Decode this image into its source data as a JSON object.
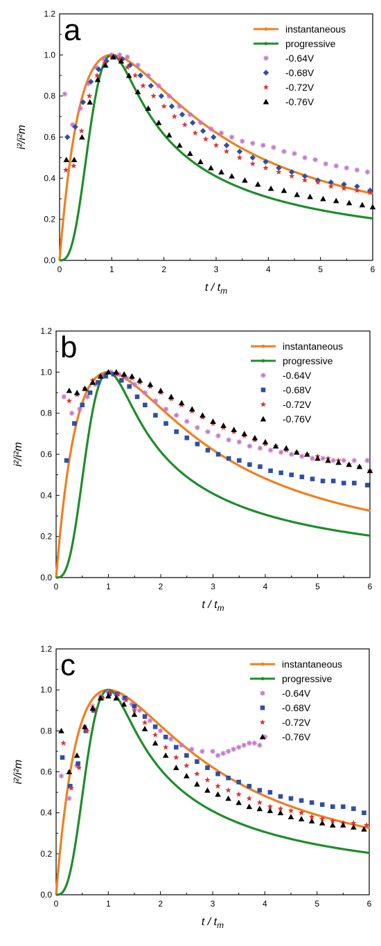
{
  "chart_data": [
    {
      "type": "line",
      "panel_label": "a",
      "xlabel_main": "t / t",
      "xlabel_sub": "m",
      "ylabel": "i²/i²m",
      "xlim": [
        0,
        6
      ],
      "ylim": [
        0,
        1.2
      ],
      "xticks": [
        "0",
        "1",
        "2",
        "3",
        "4",
        "5",
        "6"
      ],
      "yticks": [
        "0.0",
        "0.2",
        "0.4",
        "0.6",
        "0.8",
        "1.0",
        "1.2"
      ],
      "legend_position": "top-right",
      "series": [
        {
          "name": "instantaneous",
          "kind": "line",
          "model": "instantaneous",
          "color": "#f07f1e"
        },
        {
          "name": "progressive",
          "kind": "line",
          "model": "progressive",
          "color": "#1e8c2c"
        },
        {
          "name": "-0.64V",
          "kind": "marker",
          "marker": "asterisk",
          "color": "#c27ac9",
          "x": [
            0.1,
            0.25,
            0.4,
            0.55,
            0.7,
            0.85,
            1.0,
            1.15,
            1.3,
            1.5,
            1.7,
            1.9,
            2.1,
            2.3,
            2.5,
            2.7,
            2.9,
            3.1,
            3.3,
            3.5,
            3.7,
            3.9,
            4.1,
            4.3,
            4.5,
            4.7,
            4.9,
            5.1,
            5.3,
            5.5,
            5.7,
            5.9
          ],
          "y": [
            0.81,
            0.66,
            0.74,
            0.86,
            0.94,
            0.98,
            1.0,
            1.0,
            0.99,
            0.95,
            0.9,
            0.85,
            0.8,
            0.75,
            0.71,
            0.67,
            0.64,
            0.62,
            0.6,
            0.58,
            0.57,
            0.56,
            0.55,
            0.53,
            0.52,
            0.5,
            0.49,
            0.47,
            0.46,
            0.45,
            0.44,
            0.43
          ]
        },
        {
          "name": "-0.68V",
          "kind": "marker",
          "marker": "diamond",
          "color": "#2d4fa3",
          "x": [
            0.15,
            0.3,
            0.45,
            0.6,
            0.75,
            0.9,
            1.05,
            1.2,
            1.35,
            1.55,
            1.75,
            1.95,
            2.15,
            2.35,
            2.55,
            2.75,
            2.95,
            3.2,
            3.45,
            3.7,
            3.95,
            4.2,
            4.45,
            4.7,
            4.95,
            5.2,
            5.45,
            5.7,
            5.95
          ],
          "y": [
            0.6,
            0.65,
            0.77,
            0.87,
            0.93,
            0.97,
            0.99,
            0.98,
            0.95,
            0.9,
            0.85,
            0.8,
            0.75,
            0.71,
            0.67,
            0.63,
            0.6,
            0.56,
            0.53,
            0.5,
            0.48,
            0.45,
            0.43,
            0.41,
            0.39,
            0.38,
            0.37,
            0.36,
            0.34
          ]
        },
        {
          "name": "-0.72V",
          "kind": "marker",
          "marker": "star",
          "color": "#d93535",
          "x": [
            0.12,
            0.27,
            0.42,
            0.57,
            0.72,
            0.87,
            1.0,
            1.15,
            1.3,
            1.45,
            1.6,
            1.8,
            2.0,
            2.2,
            2.4,
            2.6,
            2.8,
            3.0,
            3.2,
            3.45,
            3.7,
            3.95,
            4.2,
            4.45,
            4.7,
            4.95,
            5.2,
            5.45,
            5.7,
            5.95
          ],
          "y": [
            0.44,
            0.46,
            0.63,
            0.8,
            0.9,
            0.96,
            0.99,
            0.98,
            0.94,
            0.9,
            0.85,
            0.8,
            0.75,
            0.7,
            0.66,
            0.62,
            0.59,
            0.56,
            0.53,
            0.5,
            0.47,
            0.45,
            0.43,
            0.41,
            0.39,
            0.38,
            0.36,
            0.35,
            0.34,
            0.33
          ]
        },
        {
          "name": "-0.76V",
          "kind": "marker",
          "marker": "triangle",
          "color": "#000000",
          "x": [
            0.13,
            0.28,
            0.43,
            0.58,
            0.73,
            0.88,
            1.03,
            1.18,
            1.33,
            1.5,
            1.7,
            1.9,
            2.1,
            2.3,
            2.5,
            2.7,
            2.9,
            3.1,
            3.3,
            3.55,
            3.8,
            4.05,
            4.3,
            4.55,
            4.8,
            5.05,
            5.3,
            5.55,
            5.8,
            6.0
          ],
          "y": [
            0.49,
            0.49,
            0.6,
            0.77,
            0.88,
            0.95,
            0.99,
            0.97,
            0.9,
            0.82,
            0.74,
            0.67,
            0.61,
            0.56,
            0.52,
            0.48,
            0.45,
            0.43,
            0.41,
            0.39,
            0.37,
            0.35,
            0.34,
            0.32,
            0.31,
            0.3,
            0.29,
            0.28,
            0.27,
            0.26
          ]
        }
      ]
    },
    {
      "type": "line",
      "panel_label": "b",
      "xlabel_main": "t / t",
      "xlabel_sub": "m",
      "ylabel": "i²/i²m",
      "xlim": [
        0,
        6
      ],
      "ylim": [
        0,
        1.2
      ],
      "xticks": [
        "0",
        "1",
        "2",
        "3",
        "4",
        "5",
        "6"
      ],
      "yticks": [
        "0.0",
        "0.2",
        "0.4",
        "0.6",
        "0.8",
        "1.0",
        "1.2"
      ],
      "legend_position": "top-right",
      "series": [
        {
          "name": "instantaneous",
          "kind": "line",
          "model": "instantaneous",
          "color": "#f07f1e"
        },
        {
          "name": "progressive",
          "kind": "line",
          "model": "progressive",
          "color": "#1e8c2c"
        },
        {
          "name": "-0.64V",
          "kind": "marker",
          "marker": "asterisk",
          "color": "#c27ac9",
          "x": [
            0.15,
            0.3,
            0.45,
            0.6,
            0.75,
            0.9,
            1.05,
            1.2,
            1.35,
            1.5,
            1.7,
            1.9,
            2.1,
            2.3,
            2.5,
            2.7,
            2.9,
            3.1,
            3.3,
            3.5,
            3.7,
            3.9,
            4.1,
            4.3,
            4.5,
            4.7,
            4.9,
            5.1,
            5.3,
            5.5,
            5.7,
            5.95
          ],
          "y": [
            0.88,
            0.8,
            0.82,
            0.88,
            0.94,
            0.98,
            1.0,
            0.99,
            0.97,
            0.94,
            0.9,
            0.86,
            0.82,
            0.79,
            0.76,
            0.73,
            0.71,
            0.69,
            0.67,
            0.66,
            0.64,
            0.63,
            0.62,
            0.61,
            0.6,
            0.59,
            0.58,
            0.58,
            0.57,
            0.57,
            0.57,
            0.57
          ]
        },
        {
          "name": "-0.68V",
          "kind": "marker",
          "marker": "square",
          "color": "#2d4fa3",
          "x": [
            0.2,
            0.35,
            0.5,
            0.65,
            0.8,
            0.95,
            1.1,
            1.25,
            1.4,
            1.55,
            1.7,
            1.9,
            2.1,
            2.3,
            2.5,
            2.7,
            2.9,
            3.1,
            3.3,
            3.5,
            3.7,
            3.9,
            4.1,
            4.3,
            4.5,
            4.7,
            4.9,
            5.1,
            5.3,
            5.5,
            5.7,
            5.95
          ],
          "y": [
            0.57,
            0.75,
            0.84,
            0.9,
            0.95,
            0.98,
            0.99,
            0.96,
            0.93,
            0.88,
            0.84,
            0.79,
            0.75,
            0.71,
            0.68,
            0.65,
            0.62,
            0.6,
            0.58,
            0.57,
            0.55,
            0.54,
            0.52,
            0.51,
            0.5,
            0.49,
            0.48,
            0.47,
            0.47,
            0.46,
            0.46,
            0.45
          ]
        },
        {
          "name": "-0.72V",
          "kind": "marker",
          "marker": "star",
          "color": "#d93535",
          "x": [
            0.25,
            0.4,
            0.55,
            0.7,
            0.85,
            1.0,
            1.15,
            1.3,
            1.45,
            1.6,
            1.8,
            2.0,
            2.2,
            2.4,
            2.6,
            2.8,
            3.0,
            3.2,
            3.4,
            3.6,
            3.8,
            4.0,
            4.2,
            4.4,
            4.6,
            4.8,
            5.0,
            5.2,
            5.4,
            5.6,
            5.8,
            6.0
          ],
          "y": [
            0.86,
            0.89,
            0.92,
            0.96,
            0.98,
            1.0,
            0.99,
            0.98,
            0.97,
            0.95,
            0.93,
            0.9,
            0.87,
            0.84,
            0.81,
            0.78,
            0.75,
            0.73,
            0.71,
            0.69,
            0.67,
            0.65,
            0.64,
            0.62,
            0.61,
            0.6,
            0.59,
            0.58,
            0.57,
            0.55,
            0.54,
            0.52
          ]
        },
        {
          "name": "-0.76V",
          "kind": "marker",
          "marker": "triangle",
          "color": "#000000",
          "x": [
            0.25,
            0.4,
            0.55,
            0.7,
            0.85,
            1.0,
            1.15,
            1.3,
            1.45,
            1.6,
            1.8,
            2.0,
            2.2,
            2.4,
            2.6,
            2.8,
            3.0,
            3.2,
            3.4,
            3.6,
            3.8,
            4.0,
            4.2,
            4.4,
            4.6,
            4.8,
            5.0,
            5.2,
            5.4,
            5.6,
            5.8,
            6.0
          ],
          "y": [
            0.91,
            0.9,
            0.92,
            0.95,
            0.98,
            1.0,
            1.0,
            0.99,
            0.98,
            0.96,
            0.94,
            0.91,
            0.88,
            0.85,
            0.82,
            0.79,
            0.76,
            0.74,
            0.72,
            0.7,
            0.68,
            0.66,
            0.64,
            0.63,
            0.61,
            0.6,
            0.58,
            0.57,
            0.56,
            0.55,
            0.54,
            0.52
          ]
        }
      ]
    },
    {
      "type": "line",
      "panel_label": "c",
      "xlabel_main": "t / t",
      "xlabel_sub": "m",
      "ylabel": "i²/i²m",
      "xlim": [
        0,
        6
      ],
      "ylim": [
        0,
        1.2
      ],
      "xticks": [
        "0",
        "1",
        "2",
        "3",
        "4",
        "5",
        "6"
      ],
      "yticks": [
        "0.0",
        "0.2",
        "0.4",
        "0.6",
        "0.8",
        "1.0",
        "1.2"
      ],
      "legend_position": "top-right",
      "series": [
        {
          "name": "instantaneous",
          "kind": "line",
          "model": "instantaneous",
          "color": "#f07f1e"
        },
        {
          "name": "progressive",
          "kind": "line",
          "model": "progressive",
          "color": "#1e8c2c"
        },
        {
          "name": "-0.64V",
          "kind": "marker",
          "marker": "asterisk",
          "color": "#c27ac9",
          "x": [
            0.1,
            0.25,
            0.4,
            0.55,
            0.7,
            0.85,
            1.0,
            1.15,
            1.3,
            1.45,
            1.6,
            1.8,
            2.0,
            2.2,
            2.4,
            2.6,
            2.8,
            3.0,
            3.1,
            3.2,
            3.3,
            3.4,
            3.5,
            3.6,
            3.7,
            3.8,
            3.9,
            4.0
          ],
          "y": [
            0.58,
            0.47,
            0.63,
            0.82,
            0.92,
            0.97,
            0.99,
            0.98,
            0.96,
            0.93,
            0.9,
            0.85,
            0.8,
            0.76,
            0.73,
            0.71,
            0.7,
            0.7,
            0.68,
            0.69,
            0.7,
            0.71,
            0.72,
            0.73,
            0.74,
            0.74,
            0.73,
            0.77
          ]
        },
        {
          "name": "-0.68V",
          "kind": "marker",
          "marker": "square",
          "color": "#2d4fa3",
          "x": [
            0.12,
            0.27,
            0.42,
            0.57,
            0.72,
            0.87,
            1.02,
            1.17,
            1.32,
            1.5,
            1.7,
            1.9,
            2.1,
            2.3,
            2.5,
            2.7,
            2.9,
            3.1,
            3.3,
            3.5,
            3.7,
            3.9,
            4.1,
            4.3,
            4.5,
            4.7,
            4.9,
            5.1,
            5.3,
            5.5,
            5.7,
            5.9
          ],
          "y": [
            0.67,
            0.53,
            0.64,
            0.8,
            0.9,
            0.96,
            0.98,
            0.98,
            0.96,
            0.92,
            0.87,
            0.82,
            0.77,
            0.72,
            0.68,
            0.65,
            0.62,
            0.59,
            0.57,
            0.55,
            0.53,
            0.51,
            0.5,
            0.48,
            0.47,
            0.46,
            0.45,
            0.44,
            0.43,
            0.43,
            0.42,
            0.4
          ]
        },
        {
          "name": "-0.72V",
          "kind": "marker",
          "marker": "star",
          "color": "#d93535",
          "x": [
            0.14,
            0.29,
            0.44,
            0.59,
            0.74,
            0.89,
            1.04,
            1.19,
            1.34,
            1.5,
            1.7,
            1.9,
            2.1,
            2.3,
            2.5,
            2.7,
            2.9,
            3.1,
            3.3,
            3.5,
            3.7,
            3.9,
            4.1,
            4.3,
            4.5,
            4.7,
            4.9,
            5.1,
            5.3,
            5.5,
            5.7,
            5.95
          ],
          "y": [
            0.74,
            0.52,
            0.62,
            0.8,
            0.9,
            0.96,
            0.99,
            0.98,
            0.95,
            0.9,
            0.84,
            0.78,
            0.72,
            0.67,
            0.63,
            0.59,
            0.56,
            0.53,
            0.51,
            0.49,
            0.47,
            0.45,
            0.43,
            0.42,
            0.41,
            0.4,
            0.38,
            0.37,
            0.36,
            0.35,
            0.35,
            0.34
          ]
        },
        {
          "name": "-0.76V",
          "kind": "marker",
          "marker": "triangle",
          "color": "#000000",
          "x": [
            0.1,
            0.25,
            0.4,
            0.55,
            0.7,
            0.85,
            1.0,
            1.15,
            1.3,
            1.5,
            1.7,
            1.9,
            2.1,
            2.3,
            2.5,
            2.7,
            2.9,
            3.1,
            3.3,
            3.5,
            3.7,
            3.9,
            4.1,
            4.3,
            4.5,
            4.7,
            4.9,
            5.1,
            5.3,
            5.5,
            5.7,
            5.9
          ],
          "y": [
            0.8,
            0.6,
            0.68,
            0.82,
            0.91,
            0.96,
            0.97,
            0.96,
            0.93,
            0.88,
            0.81,
            0.74,
            0.68,
            0.62,
            0.58,
            0.54,
            0.51,
            0.49,
            0.47,
            0.45,
            0.43,
            0.42,
            0.41,
            0.4,
            0.38,
            0.37,
            0.36,
            0.35,
            0.34,
            0.34,
            0.33,
            0.32
          ]
        }
      ]
    }
  ]
}
